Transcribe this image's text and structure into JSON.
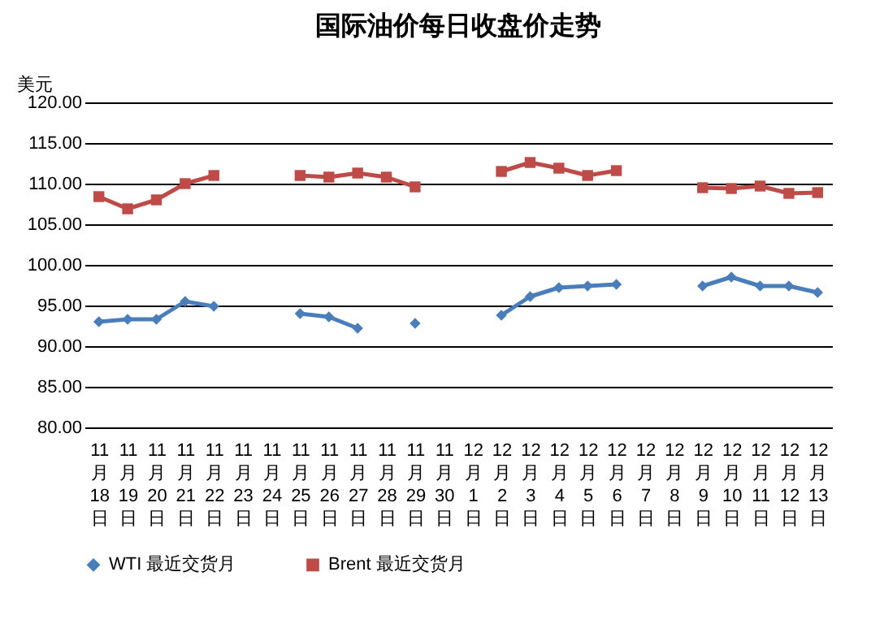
{
  "chart_data": {
    "type": "line",
    "title": "国际油价每日收盘价走势",
    "ylabel": "美元",
    "categories": [
      "11月18日",
      "11月19日",
      "11月20日",
      "11月21日",
      "11月22日",
      "11月23日",
      "11月24日",
      "11月25日",
      "11月26日",
      "11月27日",
      "11月28日",
      "11月29日",
      "11月30日",
      "12月1日",
      "12月2日",
      "12月3日",
      "12月4日",
      "12月5日",
      "12月6日",
      "12月7日",
      "12月8日",
      "12月9日",
      "12月10日",
      "12月11日",
      "12月12日",
      "12月13日"
    ],
    "series": [
      {
        "name": "WTI 最近交货月",
        "color": "#4a7ebb",
        "marker": "diamond",
        "values": [
          93.0,
          93.3,
          93.3,
          95.5,
          94.9,
          null,
          null,
          94.0,
          93.6,
          92.2,
          null,
          92.8,
          null,
          null,
          93.8,
          96.1,
          97.2,
          97.4,
          97.6,
          null,
          null,
          97.4,
          98.5,
          97.4,
          97.4,
          96.6
        ]
      },
      {
        "name": "Brent 最近交货月",
        "color": "#be4b48",
        "marker": "square",
        "values": [
          108.4,
          106.9,
          108.0,
          110.0,
          111.0,
          null,
          null,
          111.0,
          110.8,
          111.3,
          110.8,
          109.6,
          null,
          null,
          111.5,
          112.6,
          111.9,
          111.0,
          111.6,
          null,
          null,
          109.5,
          109.4,
          109.7,
          108.8,
          108.9
        ]
      }
    ],
    "ylim": [
      80,
      120
    ],
    "yticks": [
      {
        "value": 80,
        "label": "80.00"
      },
      {
        "value": 85,
        "label": "85.00"
      },
      {
        "value": 90,
        "label": "90.00"
      },
      {
        "value": 95,
        "label": "95.00"
      },
      {
        "value": 100,
        "label": "100.00"
      },
      {
        "value": 105,
        "label": "105.00"
      },
      {
        "value": 110,
        "label": "110.00"
      },
      {
        "value": 115,
        "label": "115.00"
      },
      {
        "value": 120,
        "label": "120.00"
      }
    ],
    "grid": "y",
    "legend": "bottom",
    "line_style": "solid"
  }
}
